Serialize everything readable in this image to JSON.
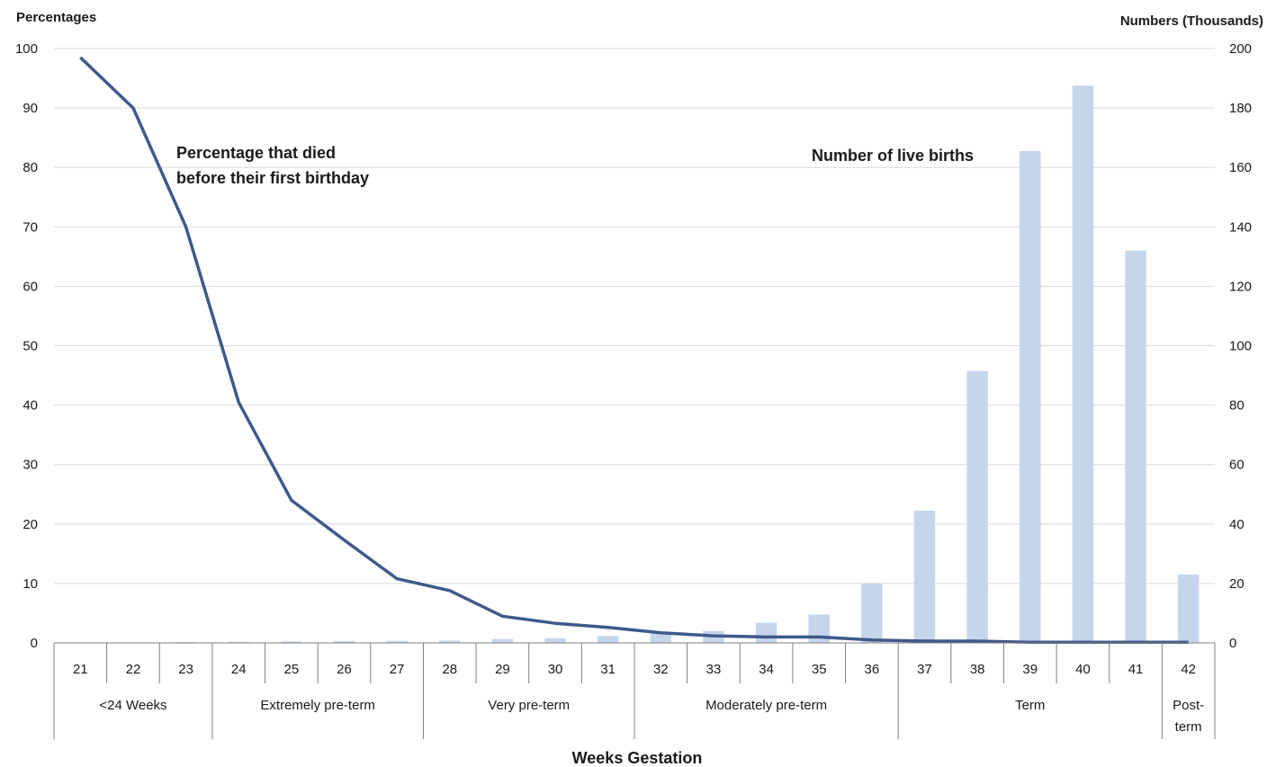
{
  "chart_data": {
    "type": "bar+line",
    "left_axis_label": "Percentages",
    "right_axis_label": "Numbers (Thousands)",
    "xlabel": "Weeks Gestation",
    "left_ylim": [
      0,
      100
    ],
    "left_ticks": [
      0,
      10,
      20,
      30,
      40,
      50,
      60,
      70,
      80,
      90,
      100
    ],
    "right_ylim": [
      0,
      200
    ],
    "right_ticks": [
      0,
      20,
      40,
      60,
      80,
      100,
      120,
      140,
      160,
      180,
      200
    ],
    "grid": true,
    "categories": [
      "21",
      "22",
      "23",
      "24",
      "25",
      "26",
      "27",
      "28",
      "29",
      "30",
      "31",
      "32",
      "33",
      "34",
      "35",
      "36",
      "37",
      "38",
      "39",
      "40",
      "41",
      "42"
    ],
    "groups": [
      {
        "label": "<24 Weeks",
        "lines": [
          "<24 Weeks"
        ],
        "start": 0,
        "end": 2
      },
      {
        "label": "Extremely pre-term",
        "lines": [
          "Extremely pre-term"
        ],
        "start": 3,
        "end": 6
      },
      {
        "label": "Very pre-term",
        "lines": [
          "Very pre-term"
        ],
        "start": 7,
        "end": 10
      },
      {
        "label": "Moderately pre-term",
        "lines": [
          "Moderately pre-term"
        ],
        "start": 11,
        "end": 15
      },
      {
        "label": "Term",
        "lines": [
          "Term"
        ],
        "start": 16,
        "end": 20
      },
      {
        "label": "Post-term",
        "lines": [
          "Post-",
          "term"
        ],
        "start": 21,
        "end": 21
      }
    ],
    "series": [
      {
        "name": "Number of live births",
        "type": "bar",
        "axis": "right",
        "color": "#c6d6ea",
        "values": [
          0.1,
          0.2,
          0.3,
          0.4,
          0.5,
          0.6,
          0.7,
          0.8,
          1.3,
          1.6,
          2.3,
          3.5,
          4.0,
          6.8,
          9.5,
          20.0,
          44.5,
          91.5,
          165.5,
          187.5,
          132.0,
          23.0
        ]
      },
      {
        "name": "Percentage that died before their first birthday",
        "type": "line",
        "axis": "left",
        "color": "#3d5a8a",
        "values": [
          98.5,
          90.0,
          70.0,
          40.5,
          24.0,
          17.3,
          10.8,
          8.8,
          4.5,
          3.3,
          2.6,
          1.7,
          1.2,
          1.0,
          1.0,
          0.5,
          0.3,
          0.3,
          0.1,
          0.1,
          0.1,
          0.1
        ]
      }
    ],
    "annotations": {
      "line_label": [
        "Percentage that died",
        "before their first birthday"
      ],
      "bar_label": "Number of live births"
    }
  }
}
